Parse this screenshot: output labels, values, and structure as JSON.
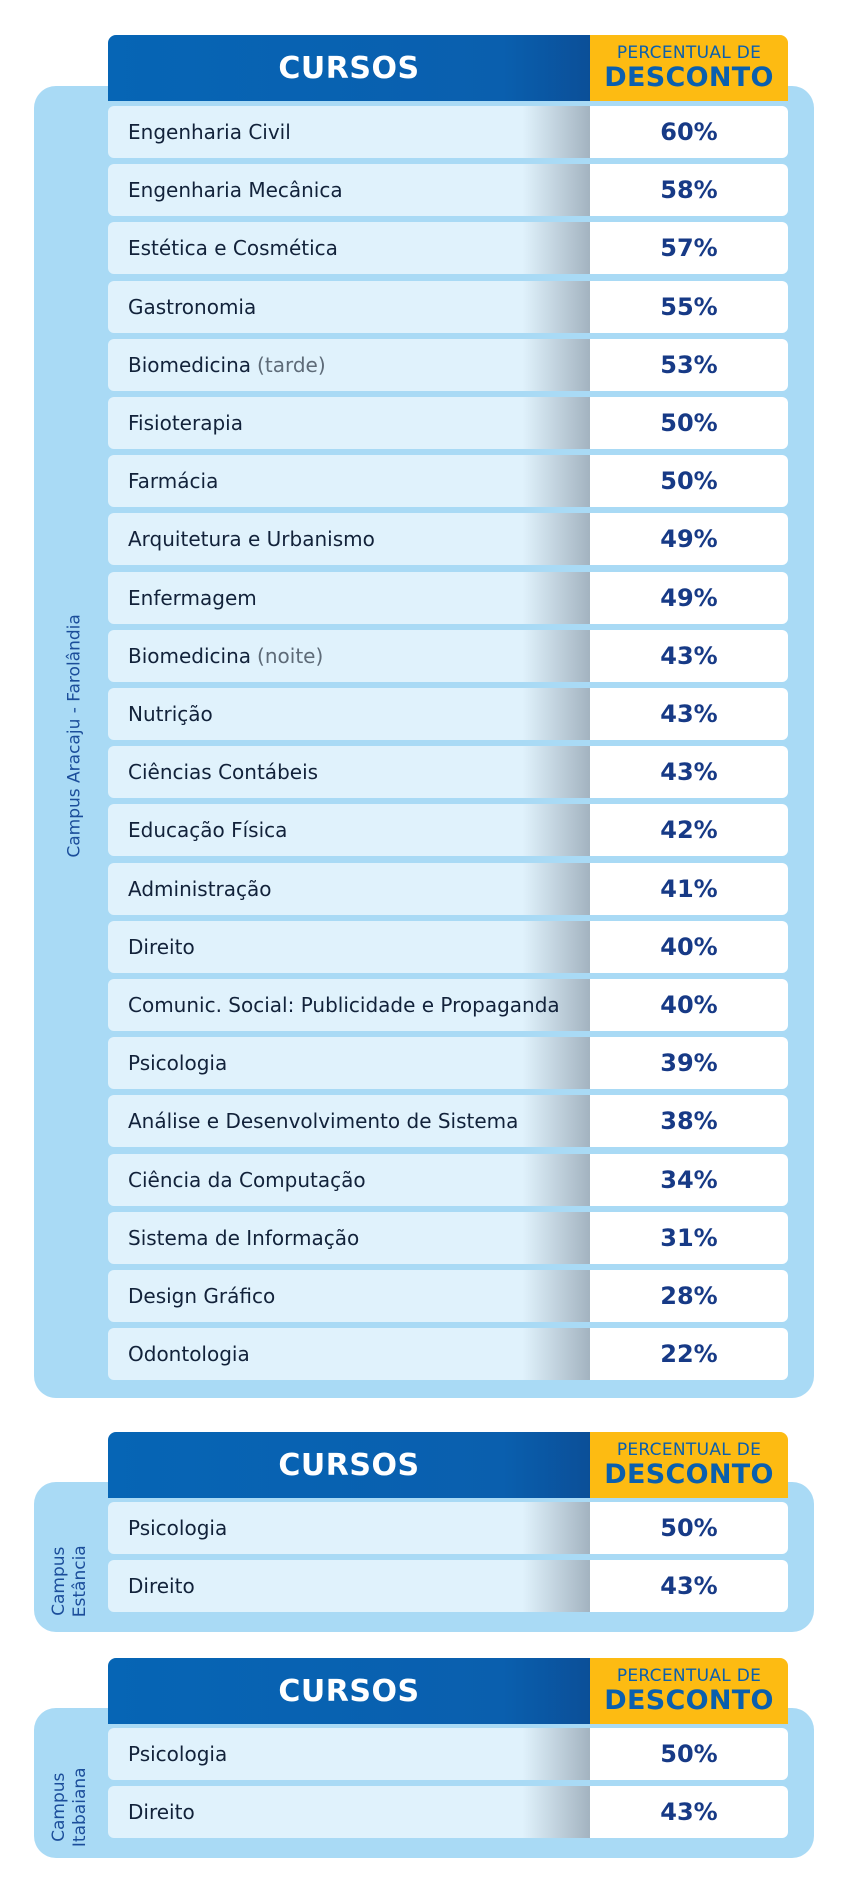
{
  "tables": [
    {
      "campus_label": "Campus Aracaju - Farolândia",
      "header": {
        "courses": "CURSOS",
        "pct_line1": "PERCENTUAL DE",
        "pct_line2": "DESCONTO"
      },
      "rows": [
        {
          "course": "Engenharia Civil",
          "suffix": "",
          "discount": "60%"
        },
        {
          "course": "Engenharia Mecânica",
          "suffix": "",
          "discount": "58%"
        },
        {
          "course": "Estética e Cosmética",
          "suffix": "",
          "discount": "57%"
        },
        {
          "course": "Gastronomia",
          "suffix": "",
          "discount": "55%"
        },
        {
          "course": "Biomedicina",
          "suffix": "(tarde)",
          "discount": "53%"
        },
        {
          "course": "Fisioterapia",
          "suffix": "",
          "discount": "50%"
        },
        {
          "course": "Farmácia",
          "suffix": "",
          "discount": "50%"
        },
        {
          "course": "Arquitetura e Urbanismo",
          "suffix": "",
          "discount": "49%"
        },
        {
          "course": "Enfermagem",
          "suffix": "",
          "discount": "49%"
        },
        {
          "course": "Biomedicina",
          "suffix": "(noite)",
          "discount": "43%"
        },
        {
          "course": "Nutrição",
          "suffix": "",
          "discount": "43%"
        },
        {
          "course": "Ciências Contábeis",
          "suffix": "",
          "discount": "43%"
        },
        {
          "course": "Educação Física",
          "suffix": "",
          "discount": "42%"
        },
        {
          "course": "Administração",
          "suffix": "",
          "discount": "41%"
        },
        {
          "course": "Direito",
          "suffix": "",
          "discount": "40%"
        },
        {
          "course": "Comunic. Social: Publicidade e Propaganda",
          "suffix": "",
          "discount": "40%"
        },
        {
          "course": "Psicologia",
          "suffix": "",
          "discount": "39%"
        },
        {
          "course": "Análise e Desenvolvimento de Sistema",
          "suffix": "",
          "discount": "38%"
        },
        {
          "course": "Ciência da Computação",
          "suffix": "",
          "discount": "34%"
        },
        {
          "course": "Sistema de Informação",
          "suffix": "",
          "discount": "31%"
        },
        {
          "course": "Design Gráfico",
          "suffix": "",
          "discount": "28%"
        },
        {
          "course": "Odontologia",
          "suffix": "",
          "discount": "22%"
        }
      ]
    },
    {
      "campus_label_line1": "Campus",
      "campus_label_line2": "Estância",
      "header": {
        "courses": "CURSOS",
        "pct_line1": "PERCENTUAL DE",
        "pct_line2": "DESCONTO"
      },
      "rows": [
        {
          "course": "Psicologia",
          "suffix": "",
          "discount": "50%"
        },
        {
          "course": "Direito",
          "suffix": "",
          "discount": "43%"
        }
      ]
    },
    {
      "campus_label_line1": "Campus",
      "campus_label_line2": "Itabaiana",
      "header": {
        "courses": "CURSOS",
        "pct_line1": "PERCENTUAL DE",
        "pct_line2": "DESCONTO"
      },
      "rows": [
        {
          "course": "Psicologia",
          "suffix": "",
          "discount": "50%"
        },
        {
          "course": "Direito",
          "suffix": "",
          "discount": "43%"
        }
      ]
    }
  ],
  "colors": {
    "header_blue": "#0a5fae",
    "header_yellow": "#fdbb12",
    "panel_light_blue": "#a9daf5",
    "row_light": "#e0f2fc",
    "pct_text": "#173a86"
  }
}
